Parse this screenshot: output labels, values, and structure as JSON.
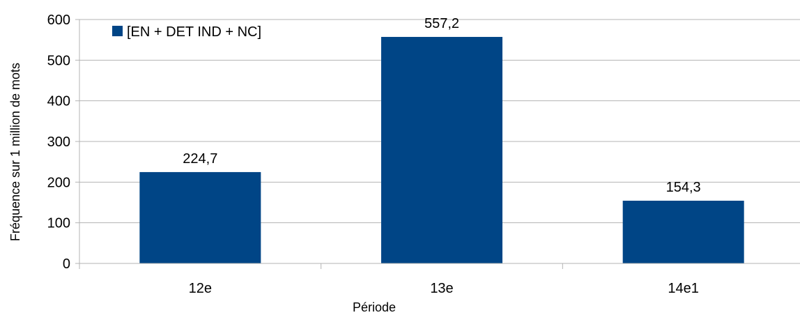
{
  "chart_data": {
    "type": "bar",
    "categories": [
      "12e",
      "13e",
      "14e1"
    ],
    "series": [
      {
        "name": "[EN + DET IND + NC]",
        "values": [
          224.7,
          557.2,
          154.3
        ],
        "color": "#004586"
      }
    ],
    "data_labels": [
      "224,7",
      "557,2",
      "154,3"
    ],
    "xlabel": "Période",
    "ylabel": "Fréquence sur 1 million de mots",
    "ylim": [
      0,
      600
    ],
    "yticks": [
      0,
      100,
      200,
      300,
      400,
      500,
      600
    ],
    "grid": true,
    "legend_position": "top-left",
    "gridline_color": "#b3b3b3"
  }
}
